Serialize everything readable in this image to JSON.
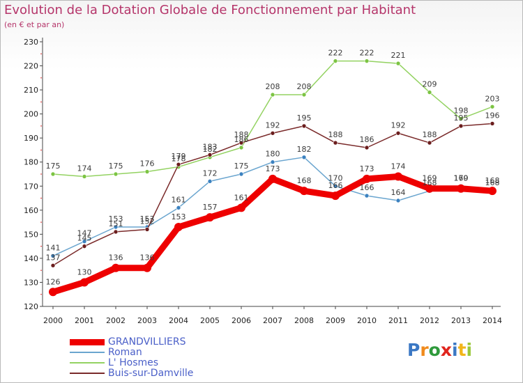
{
  "header": {
    "title": "Evolution de la Dotation Globale de Fonctionnement par Habitant",
    "subtitle": "(en € et par an)"
  },
  "logo": {
    "letters": [
      {
        "ch": "P",
        "color": "#3b78c4"
      },
      {
        "ch": "r",
        "color": "#f08a1c"
      },
      {
        "ch": "o",
        "color": "#2f9a3c"
      },
      {
        "ch": "x",
        "color": "#e0241d"
      },
      {
        "ch": "i",
        "color": "#3b78c4"
      },
      {
        "ch": "t",
        "color": "#f2b51a"
      },
      {
        "ch": "i",
        "color": "#9ac83a"
      }
    ]
  },
  "chart_data": {
    "type": "line",
    "title": "Evolution de la Dotation Globale de Fonctionnement par Habitant",
    "subtitle": "(en € et par an)",
    "x": [
      2000,
      2001,
      2002,
      2003,
      2004,
      2005,
      2006,
      2007,
      2008,
      2009,
      2010,
      2011,
      2012,
      2013,
      2014
    ],
    "ylim": [
      120,
      230
    ],
    "yticks": [
      120,
      130,
      140,
      150,
      160,
      170,
      180,
      190,
      200,
      210,
      220,
      230
    ],
    "grid": false,
    "legend_position": "bottom-left",
    "series": [
      {
        "name": "GRANDVILLIERS",
        "color": "#ee0000",
        "marker_color": "#ee0000",
        "label_color": "#3a3a3a",
        "emphasis": true,
        "values": [
          126,
          130,
          136,
          136,
          153,
          157,
          161,
          173,
          168,
          166,
          173,
          174,
          169,
          169,
          168
        ]
      },
      {
        "name": "Roman",
        "color": "#6aa5cf",
        "marker_color": "#3c82c0",
        "label_color": "#3a3a3a",
        "emphasis": false,
        "values": [
          141,
          147,
          153,
          153,
          161,
          172,
          175,
          180,
          182,
          170,
          166,
          164,
          168,
          170,
          168
        ]
      },
      {
        "name": "L' Hosmes",
        "color": "#93d261",
        "marker_color": "#7cc443",
        "label_color": "#3a3a3a",
        "emphasis": false,
        "values": [
          175,
          174,
          175,
          176,
          178,
          182,
          186,
          208,
          208,
          222,
          222,
          221,
          209,
          198,
          203
        ]
      },
      {
        "name": "Buis-sur-Damville",
        "color": "#7a2a2a",
        "marker_color": "#6b1e1e",
        "label_color": "#3a3a3a",
        "emphasis": false,
        "values": [
          137,
          145,
          151,
          152,
          179,
          183,
          188,
          192,
          195,
          188,
          186,
          192,
          188,
          195,
          196
        ]
      }
    ]
  }
}
